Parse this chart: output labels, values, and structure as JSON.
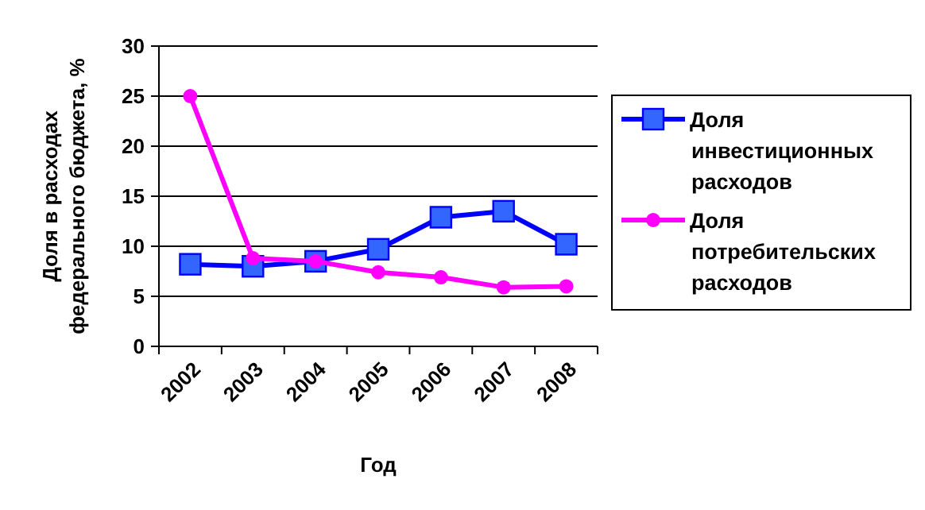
{
  "chart_data": {
    "type": "line",
    "xlabel": "Год",
    "ylabel": "Доля в расходах федерального бюджета, %",
    "categories": [
      "2002",
      "2003",
      "2004",
      "2005",
      "2006",
      "2007",
      "2008"
    ],
    "series": [
      {
        "name": "Доля инвестиционных расходов",
        "color": "#0000ff",
        "marker": "square",
        "values": [
          8.2,
          8.0,
          8.5,
          9.7,
          12.9,
          13.5,
          10.2
        ]
      },
      {
        "name": "Доля потребительских расходов",
        "color": "#ff00ff",
        "marker": "circle",
        "values": [
          25,
          8.8,
          8.5,
          7.4,
          6.9,
          5.9,
          6.0
        ]
      }
    ],
    "ylim": [
      0,
      30
    ],
    "yticks": [
      0,
      5,
      10,
      15,
      20,
      25,
      30
    ],
    "grid": "y",
    "legend": "right"
  }
}
